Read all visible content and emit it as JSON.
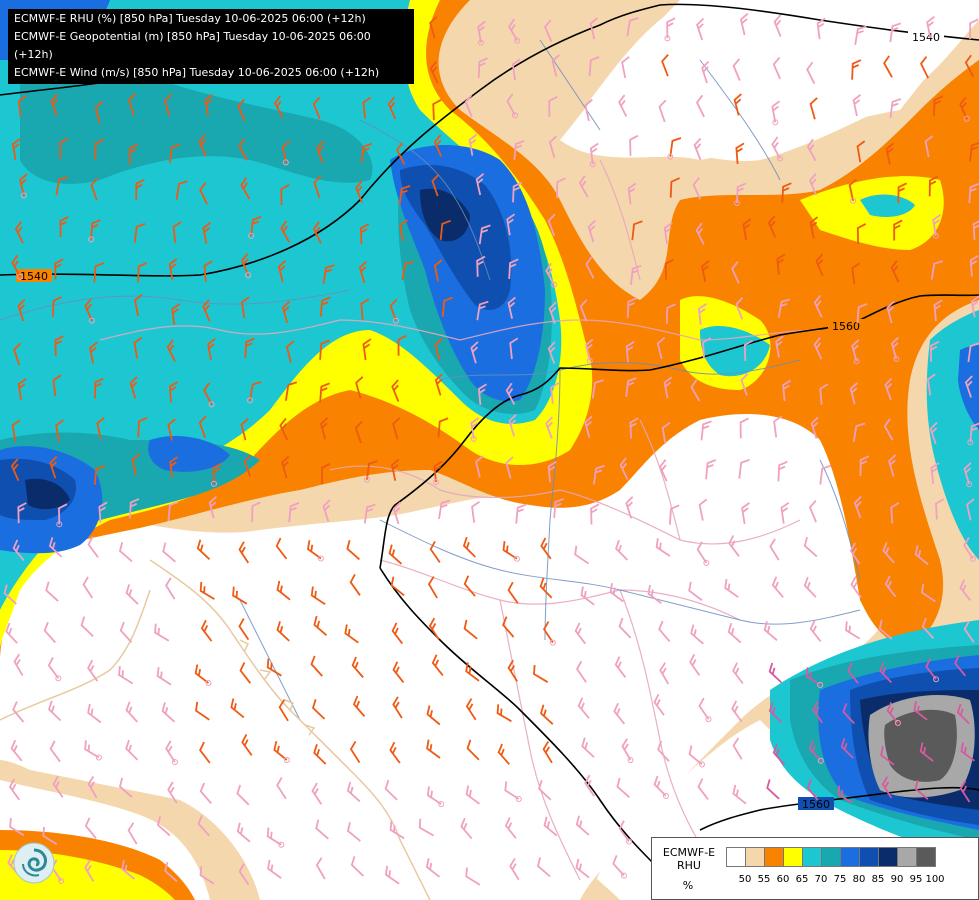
{
  "titles": [
    "ECMWF-E RHU (%) [850 hPa] Tuesday 10-06-2025 06:00 (+12h)",
    "ECMWF-E Geopotential (m) [850 hPa] Tuesday 10-06-2025 06:00 (+12h)",
    "ECMWF-E Wind (m/s) [850 hPa] Tuesday 10-06-2025 06:00 (+12h)"
  ],
  "contours": [
    {
      "label": "1540"
    },
    {
      "label": "1540"
    },
    {
      "label": "1560"
    },
    {
      "label": "1560"
    }
  ],
  "legend": {
    "name_line1": "ECMWF-E",
    "name_line2": "RHU",
    "unit": "%",
    "colors": [
      "#ffffff",
      "#f5d7ae",
      "#f98200",
      "#ffff00",
      "#1dc7d2",
      "#1aa8b0",
      "#1a6ee0",
      "#0f4fb0",
      "#0a2c6b",
      "#a8a8a8",
      "#5a5a5a"
    ],
    "ticks": [
      "50",
      "55",
      "60",
      "65",
      "70",
      "75",
      "80",
      "85",
      "90",
      "95",
      "100"
    ]
  },
  "palette": {
    "beige": "#f5d7ae",
    "orange": "#f98200",
    "yellow": "#ffff00",
    "cyan": "#1dc7d2",
    "teal": "#1aa8b0",
    "blue": "#1a6ee0",
    "darkblue": "#0f4fb0",
    "navy": "#0a2c6b",
    "lightgray": "#a8a8a8",
    "darkgray": "#5a5a5a",
    "border": "#6b8cbf",
    "coast": "#e8c9a0"
  },
  "logo_icon": "ecmwf-swirl-logo-icon"
}
